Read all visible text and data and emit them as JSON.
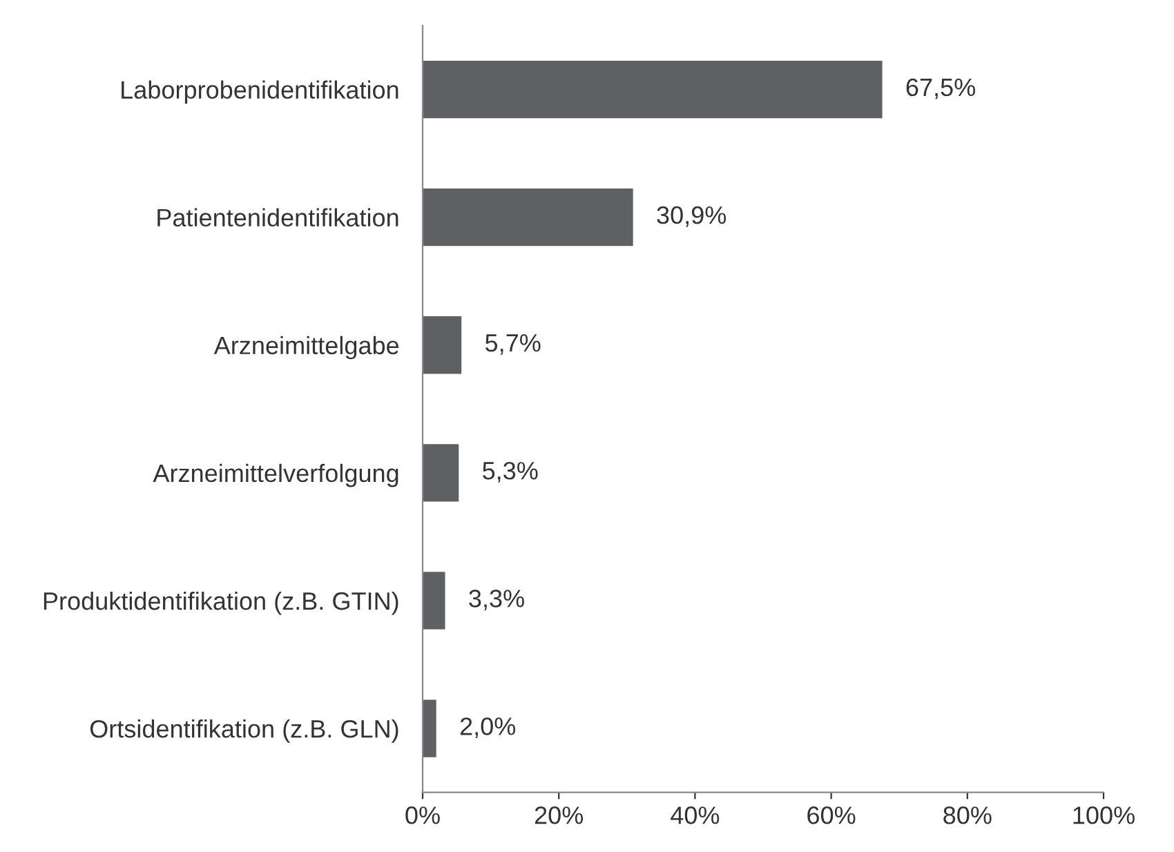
{
  "chart_data": {
    "type": "bar",
    "orientation": "horizontal",
    "categories": [
      "Laborprobenidentifikation",
      "Patientenidentifikation",
      "Arzneimittelgabe",
      "Arzneimittelverfolgung",
      "Produktidentifikation (z.B. GTIN)",
      "Ortsidentifikation (z.B. GLN)"
    ],
    "values": [
      67.5,
      30.9,
      5.7,
      5.3,
      3.3,
      2.0
    ],
    "value_labels": [
      "67,5%",
      "30,9%",
      "5,7%",
      "5,3%",
      "3,3%",
      "2,0%"
    ],
    "color": "#5f6064",
    "xlim": [
      0,
      100
    ],
    "xticks": [
      {
        "value": 0,
        "label": "0%"
      },
      {
        "value": 20,
        "label": "20%"
      },
      {
        "value": 40,
        "label": "40%"
      },
      {
        "value": 60,
        "label": "60%"
      },
      {
        "value": 80,
        "label": "80%"
      },
      {
        "value": 100,
        "label": "100%"
      }
    ],
    "grid": false,
    "legend": false
  }
}
